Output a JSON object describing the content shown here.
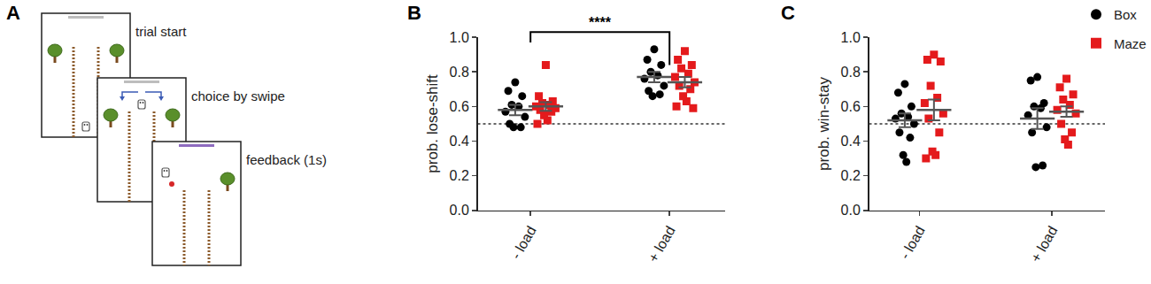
{
  "diagram": {
    "label": "A",
    "steps": [
      "trial start",
      "choice by swipe",
      "feedback (1s)"
    ]
  },
  "chart_data": [
    {
      "label": "B",
      "type": "scatter",
      "ylabel": "prob. lose-shift",
      "categories": [
        "- load",
        "+ load"
      ],
      "ylim": [
        0,
        1
      ],
      "yticks": [
        {
          "value": 0,
          "label": "0.0"
        },
        0.2,
        0.4,
        0.6,
        0.8,
        {
          "value": 1,
          "label": "1.0"
        }
      ],
      "reference_line": {
        "y": 0.5,
        "line_style": "dotted"
      },
      "series": [
        {
          "name": "Box",
          "color": "#000000",
          "marker": "circle",
          "values": [
            [
              0.74,
              0.69,
              0.66,
              0.61,
              0.6,
              0.57,
              0.54,
              0.5,
              0.48,
              0.48
            ],
            [
              0.93,
              0.87,
              0.84,
              0.8,
              0.78,
              0.76,
              0.72,
              0.69,
              0.67,
              0.66
            ]
          ],
          "mean": [
            0.58,
            0.77
          ],
          "sem": [
            0.03,
            0.03
          ]
        },
        {
          "name": "Maze",
          "color": "#e41a1c",
          "marker": "square",
          "values": [
            [
              0.84,
              0.66,
              0.63,
              0.62,
              0.61,
              0.6,
              0.59,
              0.58,
              0.57,
              0.55,
              0.52,
              0.5
            ],
            [
              0.92,
              0.87,
              0.84,
              0.82,
              0.79,
              0.77,
              0.74,
              0.72,
              0.7,
              0.66,
              0.63,
              0.6,
              0.59
            ]
          ],
          "mean": [
            0.6,
            0.74
          ],
          "sem": [
            0.025,
            0.03
          ]
        }
      ],
      "brackets": [
        {
          "from": "- load",
          "to": "+ load",
          "y": 1.03,
          "from_end": 0.97,
          "to_end": 0.84,
          "text": "****"
        }
      ]
    },
    {
      "label": "C",
      "type": "scatter",
      "ylabel": "prob. win-stay",
      "categories": [
        "- load",
        "+ load"
      ],
      "ylim": [
        0,
        1
      ],
      "yticks": [
        {
          "value": 0,
          "label": "0.0"
        },
        0.2,
        0.4,
        0.6,
        0.8,
        {
          "value": 1,
          "label": "1.0"
        }
      ],
      "reference_line": {
        "y": 0.5,
        "line_style": "dotted"
      },
      "legend": "upper right",
      "series": [
        {
          "name": "Box",
          "color": "#000000",
          "marker": "circle",
          "values": [
            [
              0.73,
              0.68,
              0.6,
              0.56,
              0.54,
              0.53,
              0.5,
              0.45,
              0.42,
              0.32,
              0.28
            ],
            [
              0.77,
              0.75,
              0.62,
              0.6,
              0.59,
              0.55,
              0.48,
              0.45,
              0.26,
              0.25
            ]
          ],
          "mean": [
            0.52,
            0.53
          ],
          "sem": [
            0.04,
            0.06
          ]
        },
        {
          "name": "Maze",
          "color": "#e41a1c",
          "marker": "square",
          "values": [
            [
              0.9,
              0.87,
              0.86,
              0.72,
              0.65,
              0.62,
              0.56,
              0.53,
              0.45,
              0.34,
              0.32,
              0.3
            ],
            [
              0.76,
              0.71,
              0.67,
              0.64,
              0.61,
              0.58,
              0.56,
              0.5,
              0.45,
              0.41,
              0.38
            ]
          ],
          "mean": [
            0.58,
            0.57
          ],
          "sem": [
            0.06,
            0.03
          ]
        }
      ]
    }
  ]
}
